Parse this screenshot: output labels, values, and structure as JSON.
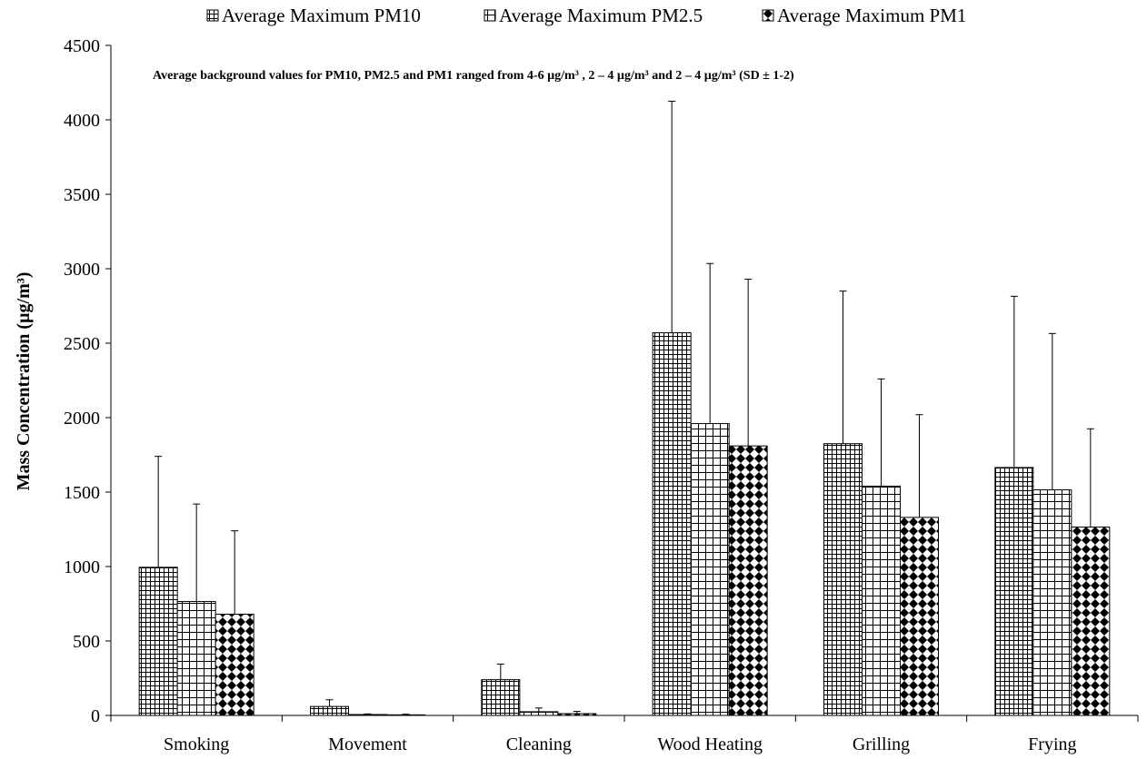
{
  "chart_data": {
    "type": "bar",
    "title": "",
    "xlabel": "",
    "ylabel": "Mass Concentration (µg/m³)",
    "ylim": [
      0,
      4500
    ],
    "yticks": [
      0,
      500,
      1000,
      1500,
      2000,
      2500,
      3000,
      3500,
      4000,
      4500
    ],
    "grid": false,
    "legend_position": "top",
    "annotation": "Average background values  for PM10, PM2.5 and PM1 ranged from 4-6 µg/m³ , 2 – 4 µg/m³ and 2 – 4 µg/m³ (SD ± 1-2)",
    "categories": [
      "Smoking",
      "Movement",
      "Cleaning",
      "Wood Heating",
      "Grilling",
      "Frying"
    ],
    "series": [
      {
        "name": "Average  Maximum PM10",
        "pattern": "grid",
        "values": [
          995,
          60,
          240,
          2570,
          1825,
          1665
        ],
        "error": [
          745,
          45,
          105,
          1555,
          1025,
          1150
        ]
      },
      {
        "name": "Average Maximum PM2.5",
        "pattern": "hgrid",
        "values": [
          765,
          6,
          25,
          1960,
          1540,
          1515
        ],
        "error": [
          655,
          4,
          25,
          1075,
          720,
          1050
        ]
      },
      {
        "name": "Average Maximum PM1",
        "pattern": "diamond",
        "values": [
          680,
          4,
          12,
          1810,
          1330,
          1265
        ],
        "error": [
          560,
          4,
          15,
          1120,
          690,
          660
        ]
      }
    ]
  }
}
